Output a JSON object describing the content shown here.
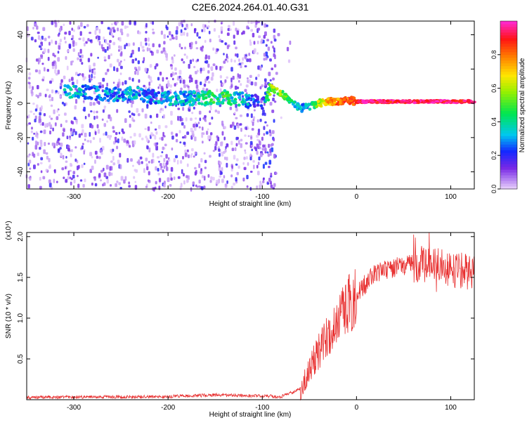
{
  "title": "C2E6.2024.264.01.40.G31",
  "chart_data": [
    {
      "type": "heatmap",
      "name": "spectrogram",
      "xlabel": "Height of straight line (km)",
      "ylabel": "Frequency (Hz)",
      "xlim": [
        -350,
        125
      ],
      "ylim": [
        -50,
        48
      ],
      "xticks": [
        -300,
        -200,
        -100,
        0,
        100
      ],
      "yticks": [
        -40,
        -20,
        0,
        20,
        40
      ],
      "colorbar": {
        "label": "Normalized spectral amplitude",
        "range": [
          0,
          1
        ],
        "ticks": [
          0.0,
          0.2,
          0.4,
          0.6,
          0.8
        ],
        "tick_labels": [
          "0.0",
          "0.2",
          "0.4",
          "0.6",
          "0.8"
        ]
      },
      "signal_track": {
        "x": [
          -310,
          -300,
          -280,
          -250,
          -240,
          -220,
          -200,
          -180,
          -160,
          -140,
          -120,
          -110,
          -100,
          -90,
          -80,
          -70,
          -60,
          -50,
          -40,
          -30,
          -20,
          -10,
          0,
          10,
          50,
          90,
          125
        ],
        "y": [
          8,
          7,
          6,
          5,
          6,
          4,
          3,
          3,
          3,
          4,
          2,
          1,
          0,
          9,
          6,
          2,
          -3,
          -2,
          0,
          1,
          1,
          2,
          1,
          1,
          1,
          1,
          1
        ],
        "amplitude": [
          0.3,
          0.35,
          0.25,
          0.3,
          0.3,
          0.25,
          0.3,
          0.3,
          0.4,
          0.45,
          0.3,
          0.25,
          0.2,
          0.6,
          0.55,
          0.4,
          0.3,
          0.3,
          0.6,
          0.75,
          0.8,
          0.85,
          0.9,
          0.95,
          0.95,
          0.95,
          0.95
        ]
      }
    },
    {
      "type": "line",
      "name": "snr",
      "xlabel": "Height of straight line (km)",
      "ylabel": "SNR (10 * v/v)",
      "multiplier_label": "(x10⁴)",
      "xlim": [
        -350,
        125
      ],
      "ylim": [
        0,
        2.05
      ],
      "xticks": [
        -300,
        -200,
        -100,
        0,
        100
      ],
      "yticks": [
        0.5,
        1.0,
        1.5,
        2.0
      ],
      "ytick_labels": [
        "0.5",
        "1.0",
        "1.5",
        "2.0"
      ],
      "color": "#e83030",
      "trend": {
        "x": [
          -350,
          -200,
          -150,
          -100,
          -80,
          -60,
          -50,
          -40,
          -30,
          -20,
          -10,
          0,
          20,
          40,
          60,
          80,
          100,
          125
        ],
        "y": [
          0.02,
          0.03,
          0.05,
          0.04,
          0.03,
          0.12,
          0.35,
          0.6,
          0.8,
          0.95,
          1.15,
          1.3,
          1.55,
          1.62,
          1.66,
          1.66,
          1.6,
          1.55
        ]
      }
    }
  ]
}
